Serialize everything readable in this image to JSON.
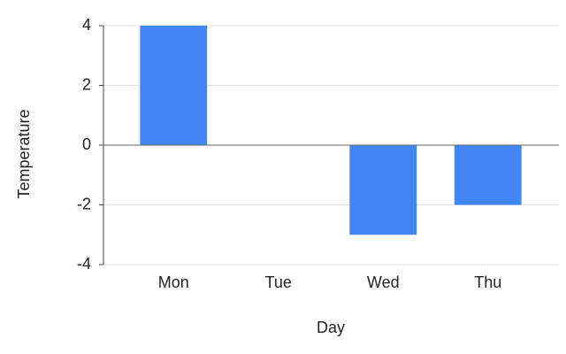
{
  "chart_data": {
    "type": "bar",
    "x_label": "Day",
    "y_label": "Temperature",
    "categories": [
      "Mon",
      "Tue",
      "Wed",
      "Thu"
    ],
    "values": [
      4,
      0,
      -3,
      -2
    ],
    "color": "#4285f4",
    "ylim": [
      -4,
      4
    ],
    "yticks": [
      -4,
      -2,
      0,
      2,
      4
    ],
    "grid": true
  }
}
